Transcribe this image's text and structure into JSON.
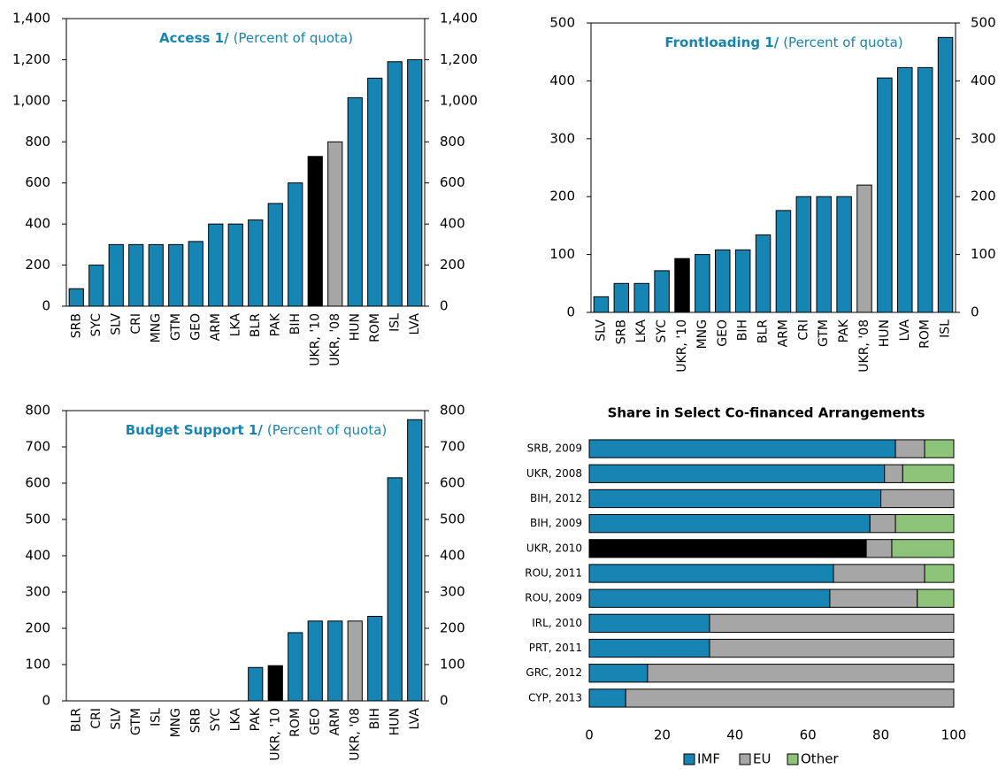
{
  "chart_data": [
    {
      "type": "bar",
      "title": "Access 1/",
      "subtitle": "(Percent of quota)",
      "categories": [
        "SRB",
        "SYC",
        "SLV",
        "CRI",
        "MNG",
        "GTM",
        "GEO",
        "ARM",
        "LKA",
        "BLR",
        "PAK",
        "BIH",
        "UKR, '10",
        "UKR, '08",
        "HUN",
        "ROM",
        "ISL",
        "LVA"
      ],
      "values": [
        85,
        200,
        300,
        300,
        300,
        300,
        315,
        400,
        400,
        420,
        500,
        600,
        729,
        800,
        1015,
        1110,
        1190,
        1200
      ],
      "colors": [
        "#1685b3",
        "#1685b3",
        "#1685b3",
        "#1685b3",
        "#1685b3",
        "#1685b3",
        "#1685b3",
        "#1685b3",
        "#1685b3",
        "#1685b3",
        "#1685b3",
        "#1685b3",
        "#000000",
        "#a6a6a6",
        "#1685b3",
        "#1685b3",
        "#1685b3",
        "#1685b3"
      ],
      "ylim": [
        0,
        1400
      ],
      "yticks": [
        0,
        200,
        400,
        600,
        800,
        {
          "value": 1000,
          "label": "1,000"
        },
        {
          "value": 1200,
          "label": "1,200"
        },
        {
          "value": 1400,
          "label": "1,400"
        }
      ]
    },
    {
      "type": "bar",
      "title": "Frontloading 1/",
      "subtitle": "(Percent of quota)",
      "categories": [
        "SLV",
        "SRB",
        "LKA",
        "SYC",
        "UKR, '10",
        "MNG",
        "GEO",
        "BIH",
        "BLR",
        "ARM",
        "CRI",
        "GTM",
        "PAK",
        "UKR, '08",
        "HUN",
        "LVA",
        "ROM",
        "ISL"
      ],
      "values": [
        27,
        50,
        50,
        72,
        93,
        100,
        108,
        108,
        134,
        176,
        200,
        200,
        200,
        220,
        405,
        423,
        423,
        475
      ],
      "colors": [
        "#1685b3",
        "#1685b3",
        "#1685b3",
        "#1685b3",
        "#000000",
        "#1685b3",
        "#1685b3",
        "#1685b3",
        "#1685b3",
        "#1685b3",
        "#1685b3",
        "#1685b3",
        "#1685b3",
        "#a6a6a6",
        "#1685b3",
        "#1685b3",
        "#1685b3",
        "#1685b3"
      ],
      "ylim": [
        0,
        500
      ],
      "yticks": [
        0,
        100,
        200,
        300,
        400,
        500
      ]
    },
    {
      "type": "bar",
      "title": "Budget Support 1/",
      "subtitle": "(Percent of quota)",
      "categories": [
        "BLR",
        "CRI",
        "SLV",
        "GTM",
        "ISL",
        "MNG",
        "SRB",
        "SYC",
        "LKA",
        "PAK",
        "UKR, '10",
        "ROM",
        "GEO",
        "ARM",
        "UKR, '08",
        "BIH",
        "HUN",
        "LVA"
      ],
      "values": [
        0,
        0,
        0,
        0,
        0,
        0,
        0,
        0,
        0,
        92,
        97,
        188,
        220,
        220,
        220,
        233,
        615,
        775
      ],
      "colors": [
        "#1685b3",
        "#1685b3",
        "#1685b3",
        "#1685b3",
        "#1685b3",
        "#1685b3",
        "#1685b3",
        "#1685b3",
        "#1685b3",
        "#1685b3",
        "#000000",
        "#1685b3",
        "#1685b3",
        "#1685b3",
        "#a6a6a6",
        "#1685b3",
        "#1685b3",
        "#1685b3"
      ],
      "ylim": [
        0,
        800
      ],
      "yticks": [
        0,
        100,
        200,
        300,
        400,
        500,
        600,
        700,
        800
      ]
    },
    {
      "type": "stacked-barh",
      "title": "Share in Select Co-financed Arrangements",
      "categories": [
        "SRB, 2009",
        "UKR, 2008",
        "BIH, 2012",
        "BIH, 2009",
        "UKR, 2010",
        "ROU, 2011",
        "ROU, 2009",
        "IRL, 2010",
        "PRT, 2011",
        "GRC, 2012",
        "CYP, 2013"
      ],
      "series": [
        {
          "name": "IMF",
          "color": "#1685b3",
          "colors": [
            "#1685b3",
            "#1685b3",
            "#1685b3",
            "#1685b3",
            "#000000",
            "#1685b3",
            "#1685b3",
            "#1685b3",
            "#1685b3",
            "#1685b3",
            "#1685b3"
          ],
          "values": [
            84,
            81,
            80,
            77,
            76,
            67,
            66,
            33,
            33,
            16,
            10
          ]
        },
        {
          "name": "EU",
          "color": "#a6a6a6",
          "values": [
            8,
            5,
            20,
            7,
            7,
            25,
            24,
            67,
            67,
            84,
            90
          ]
        },
        {
          "name": "Other",
          "color": "#8dc479",
          "values": [
            8,
            14,
            0,
            16,
            17,
            8,
            10,
            0,
            0,
            0,
            0
          ]
        }
      ],
      "xlim": [
        0,
        100
      ],
      "xticks": [
        0,
        20,
        40,
        60,
        80,
        100
      ],
      "legend": "bottom"
    }
  ]
}
